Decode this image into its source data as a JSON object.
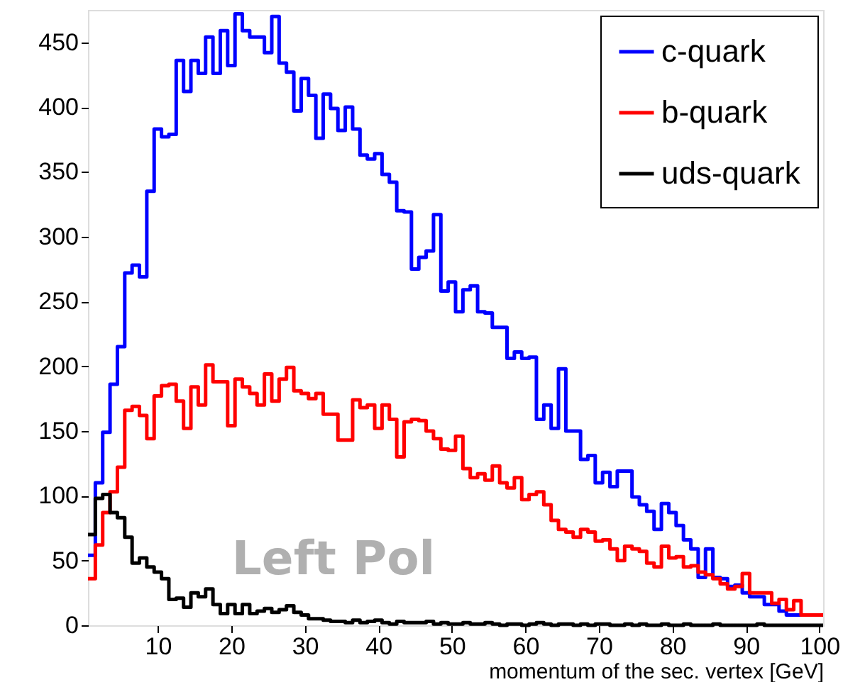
{
  "chart_data": {
    "type": "histogram",
    "xlabel": "momentum of the sec. vertex [GeV]",
    "annotations": [
      "Left Pol"
    ],
    "bins": [
      0.5,
      1.5,
      2.5,
      3.5,
      4.5,
      5.5,
      6.5,
      7.5,
      8.5,
      9.5,
      10.5,
      11.5,
      12.5,
      13.5,
      14.5,
      15.5,
      16.5,
      17.5,
      18.5,
      19.5,
      20.5,
      21.5,
      22.5,
      23.5,
      24.5,
      25.5,
      26.5,
      27.5,
      28.5,
      29.5,
      30.5,
      31.5,
      32.5,
      33.5,
      34.5,
      35.5,
      36.5,
      37.5,
      38.5,
      39.5,
      40.5,
      41.5,
      42.5,
      43.5,
      44.5,
      45.5,
      46.5,
      47.5,
      48.5,
      49.5,
      50.5,
      51.5,
      52.5,
      53.5,
      54.5,
      55.5,
      56.5,
      57.5,
      58.5,
      59.5,
      60.5,
      61.5,
      62.5,
      63.5,
      64.5,
      65.5,
      66.5,
      67.5,
      68.5,
      69.5,
      70.5,
      71.5,
      72.5,
      73.5,
      74.5,
      75.5,
      76.5,
      77.5,
      78.5,
      79.5,
      80.5,
      81.5,
      82.5,
      83.5,
      84.5,
      85.5,
      86.5,
      87.5,
      88.5,
      89.5,
      90.5,
      91.5,
      92.5,
      93.5,
      94.5,
      95.5,
      96.5,
      97.5,
      98.5,
      99.5,
      100.5
    ],
    "series": [
      {
        "name": "c-quark",
        "color": "#0000ff",
        "values": [
          54,
          110,
          149,
          186,
          215,
          272,
          278,
          269,
          335,
          383,
          377,
          379,
          436,
          412,
          436,
          426,
          454,
          426,
          459,
          432,
          472,
          459,
          454,
          454,
          442,
          470,
          434,
          427,
          397,
          422,
          409,
          376,
          410,
          399,
          382,
          400,
          383,
          363,
          360,
          364,
          348,
          342,
          320,
          319,
          275,
          284,
          289,
          317,
          258,
          265,
          242,
          259,
          262,
          242,
          241,
          230,
          230,
          206,
          211,
          206,
          207,
          159,
          170,
          152,
          198,
          150,
          150,
          128,
          131,
          110,
          118,
          107,
          119,
          119,
          99,
          93,
          88,
          74,
          94,
          87,
          77,
          66,
          59,
          37,
          59,
          37,
          36,
          30,
          31,
          25,
          22,
          22,
          16,
          16,
          11,
          8,
          8,
          8,
          8,
          8
        ]
      },
      {
        "name": "b-quark",
        "color": "#ff0000",
        "values": [
          36,
          62,
          87,
          103,
          122,
          166,
          169,
          162,
          144,
          177,
          185,
          186,
          173,
          152,
          184,
          170,
          201,
          188,
          188,
          154,
          190,
          184,
          179,
          170,
          194,
          173,
          190,
          199,
          181,
          179,
          175,
          179,
          163,
          163,
          143,
          143,
          174,
          168,
          170,
          152,
          170,
          159,
          130,
          157,
          159,
          158,
          150,
          144,
          136,
          135,
          146,
          121,
          114,
          117,
          112,
          123,
          110,
          106,
          114,
          97,
          101,
          103,
          93,
          81,
          74,
          72,
          68,
          74,
          72,
          65,
          66,
          59,
          50,
          61,
          59,
          57,
          48,
          45,
          61,
          52,
          53,
          45,
          46,
          41,
          39,
          36,
          32,
          28,
          30,
          40,
          25,
          25,
          25,
          17,
          20,
          12,
          19,
          8,
          8,
          8
        ]
      },
      {
        "name": "uds-quark",
        "color": "#000000",
        "values": [
          70,
          98,
          101,
          87,
          83,
          68,
          48,
          52,
          45,
          41,
          36,
          20,
          21,
          14,
          25,
          22,
          28,
          16,
          9,
          16,
          9,
          16,
          9,
          11,
          13,
          10,
          12,
          15,
          10,
          8,
          5,
          5,
          4,
          3,
          3,
          2,
          4,
          2,
          3,
          4,
          2,
          1,
          3,
          2,
          2,
          2,
          3,
          1,
          2,
          1,
          1,
          2,
          1,
          1,
          2,
          1,
          0,
          1,
          1,
          0,
          1,
          2,
          1,
          0,
          1,
          1,
          0,
          1,
          0,
          1,
          1,
          0,
          0,
          1,
          0,
          1,
          0,
          0,
          1,
          0,
          0,
          1,
          0,
          0,
          0,
          1,
          0,
          0,
          0,
          0,
          0,
          1,
          0,
          0,
          0,
          0,
          0,
          0,
          0,
          0
        ]
      }
    ],
    "xlim": [
      0.5,
      100.5
    ],
    "xticks": [
      10,
      20,
      30,
      40,
      50,
      60,
      70,
      80,
      90,
      100
    ],
    "ylim": [
      0,
      475
    ],
    "yticks": [
      0,
      50,
      100,
      150,
      200,
      250,
      300,
      350,
      400,
      450
    ],
    "grid": false,
    "legend": "top right",
    "line_style": "solid"
  }
}
